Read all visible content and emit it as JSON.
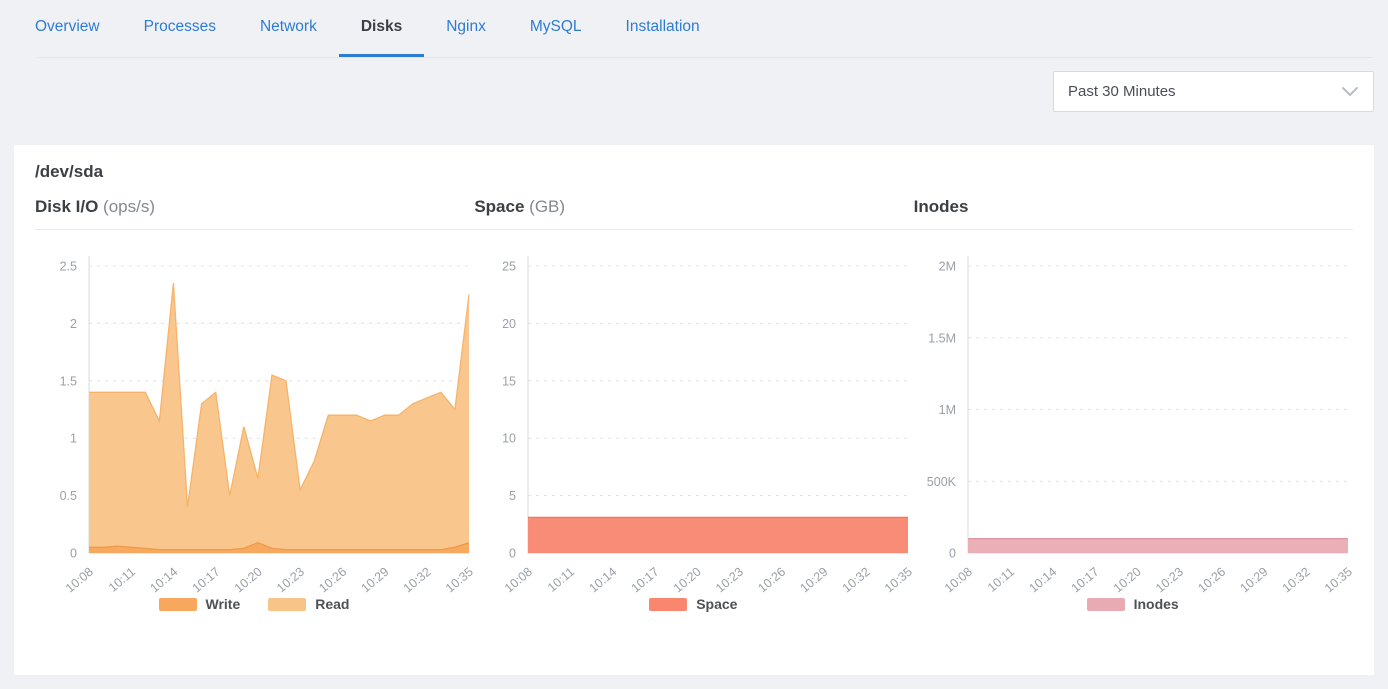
{
  "tabs": {
    "items": [
      {
        "label": "Overview",
        "active": false
      },
      {
        "label": "Processes",
        "active": false
      },
      {
        "label": "Network",
        "active": false
      },
      {
        "label": "Disks",
        "active": true
      },
      {
        "label": "Nginx",
        "active": false
      },
      {
        "label": "MySQL",
        "active": false
      },
      {
        "label": "Installation",
        "active": false
      }
    ]
  },
  "toolbar": {
    "time_range_selected": "Past 30 Minutes"
  },
  "card": {
    "title": "/dev/sda"
  },
  "colors": {
    "accent_blue": "#2e7cd2",
    "active_tab_text": "#3b3e45",
    "grid_line": "#dfe1e5",
    "axis_line": "#d9dbdf",
    "tick_text": "#9aa0a6",
    "write_fill": "#f7a85e",
    "read_fill": "#f9c488",
    "space_fill": "#f9866f",
    "inodes_fill": "#e9abb3"
  },
  "chart_data": [
    {
      "type": "area",
      "title": "Disk I/O",
      "unit": "(ops/s)",
      "x": [
        "10:08",
        "10:09",
        "10:10",
        "10:11",
        "10:12",
        "10:13",
        "10:14",
        "10:15",
        "10:16",
        "10:17",
        "10:18",
        "10:19",
        "10:20",
        "10:21",
        "10:22",
        "10:23",
        "10:24",
        "10:25",
        "10:26",
        "10:27",
        "10:28",
        "10:29",
        "10:30",
        "10:31",
        "10:32",
        "10:33",
        "10:34",
        "10:35"
      ],
      "tick_every": 3,
      "ylim": [
        0,
        2.5
      ],
      "yticks": [
        0,
        0.5,
        1,
        1.5,
        2,
        2.5
      ],
      "ytick_labels": [
        "0",
        "0.5",
        "1",
        "1.5",
        "2",
        "2.5"
      ],
      "grid": true,
      "legend_position": "bottom",
      "series": [
        {
          "name": "Write",
          "color": "#f7a85e",
          "line_color": "#f09a47",
          "values": [
            0.05,
            0.05,
            0.06,
            0.05,
            0.04,
            0.03,
            0.03,
            0.03,
            0.03,
            0.03,
            0.03,
            0.04,
            0.09,
            0.04,
            0.03,
            0.03,
            0.03,
            0.03,
            0.03,
            0.03,
            0.03,
            0.03,
            0.03,
            0.03,
            0.03,
            0.03,
            0.05,
            0.09
          ]
        },
        {
          "name": "Read",
          "color": "#f9c488",
          "line_color": "#f6b369",
          "values": [
            1.4,
            1.4,
            1.4,
            1.4,
            1.4,
            1.15,
            2.35,
            0.4,
            1.3,
            1.4,
            0.5,
            1.1,
            0.65,
            1.55,
            1.5,
            0.55,
            0.8,
            1.2,
            1.2,
            1.2,
            1.15,
            1.2,
            1.2,
            1.3,
            1.35,
            1.4,
            1.25,
            2.25
          ]
        }
      ]
    },
    {
      "type": "area",
      "title": "Space",
      "unit": "(GB)",
      "x": [
        "10:08",
        "10:09",
        "10:10",
        "10:11",
        "10:12",
        "10:13",
        "10:14",
        "10:15",
        "10:16",
        "10:17",
        "10:18",
        "10:19",
        "10:20",
        "10:21",
        "10:22",
        "10:23",
        "10:24",
        "10:25",
        "10:26",
        "10:27",
        "10:28",
        "10:29",
        "10:30",
        "10:31",
        "10:32",
        "10:33",
        "10:34",
        "10:35"
      ],
      "tick_every": 3,
      "ylim": [
        0,
        25
      ],
      "yticks": [
        0,
        5,
        10,
        15,
        20,
        25
      ],
      "ytick_labels": [
        "0",
        "5",
        "10",
        "15",
        "20",
        "25"
      ],
      "grid": true,
      "legend_position": "bottom",
      "series": [
        {
          "name": "Space",
          "color": "#f9866f",
          "line_color": "#f7725c",
          "values": [
            3.1,
            3.1,
            3.1,
            3.1,
            3.1,
            3.1,
            3.1,
            3.1,
            3.1,
            3.1,
            3.1,
            3.1,
            3.1,
            3.1,
            3.1,
            3.1,
            3.1,
            3.1,
            3.1,
            3.1,
            3.1,
            3.1,
            3.1,
            3.1,
            3.1,
            3.1,
            3.1,
            3.1
          ]
        }
      ]
    },
    {
      "type": "area",
      "title": "Inodes",
      "unit": "",
      "x": [
        "10:08",
        "10:09",
        "10:10",
        "10:11",
        "10:12",
        "10:13",
        "10:14",
        "10:15",
        "10:16",
        "10:17",
        "10:18",
        "10:19",
        "10:20",
        "10:21",
        "10:22",
        "10:23",
        "10:24",
        "10:25",
        "10:26",
        "10:27",
        "10:28",
        "10:29",
        "10:30",
        "10:31",
        "10:32",
        "10:33",
        "10:34",
        "10:35"
      ],
      "tick_every": 3,
      "ylim": [
        0,
        2000000
      ],
      "yticks": [
        0,
        500000,
        1000000,
        1500000,
        2000000
      ],
      "ytick_labels": [
        "0",
        "500K",
        "1M",
        "1.5M",
        "2M"
      ],
      "grid": true,
      "legend_position": "bottom",
      "series": [
        {
          "name": "Inodes",
          "color": "#e9abb3",
          "line_color": "#df97a2",
          "values": [
            100000,
            100000,
            100000,
            100000,
            100000,
            100000,
            100000,
            100000,
            100000,
            100000,
            100000,
            100000,
            100000,
            100000,
            100000,
            100000,
            100000,
            100000,
            100000,
            100000,
            100000,
            100000,
            100000,
            100000,
            100000,
            100000,
            100000,
            100000
          ]
        }
      ]
    }
  ]
}
